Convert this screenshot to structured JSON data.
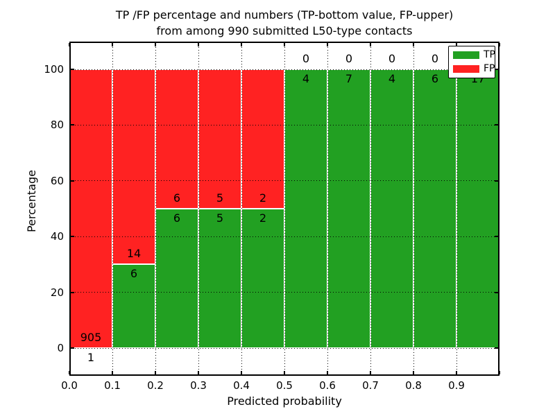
{
  "figure": {
    "title_line1": "TP /FP percentage and numbers (TP-bottom value, FP-upper)",
    "title_line2": "from among 990 submitted L50-type contacts",
    "xlabel": "Predicted probability",
    "ylabel": "Percentage"
  },
  "legend": {
    "position": "upper right",
    "items": [
      {
        "label": "TP",
        "color": "#22a022"
      },
      {
        "label": "FP",
        "color": "#ff2222"
      }
    ]
  },
  "chart_data": {
    "type": "bar",
    "stacked": true,
    "title": "TP /FP percentage and numbers (TP-bottom value, FP-upper) from among 990 submitted L50-type contacts",
    "xlabel": "Predicted probability",
    "ylabel": "Percentage",
    "xlim": [
      0.0,
      1.0
    ],
    "ylim": [
      -10,
      110
    ],
    "grid": "dotted",
    "legend_position": "upper right",
    "total_contacts": 990,
    "x_tick_labels": [
      "0.0",
      "0.1",
      "0.2",
      "0.3",
      "0.4",
      "0.5",
      "0.6",
      "0.7",
      "0.8",
      "0.9"
    ],
    "y_tick_values": [
      0,
      20,
      40,
      60,
      80,
      100
    ],
    "value_label_rule": "counts printed at TP/FP boundary: FP count above, TP count below",
    "bins": [
      {
        "range": [
          0.0,
          0.1
        ],
        "tp": 1,
        "fp": 905
      },
      {
        "range": [
          0.1,
          0.2
        ],
        "tp": 6,
        "fp": 14
      },
      {
        "range": [
          0.2,
          0.3
        ],
        "tp": 6,
        "fp": 6
      },
      {
        "range": [
          0.3,
          0.4
        ],
        "tp": 5,
        "fp": 5
      },
      {
        "range": [
          0.4,
          0.5
        ],
        "tp": 2,
        "fp": 2
      },
      {
        "range": [
          0.5,
          0.6
        ],
        "tp": 4,
        "fp": 0
      },
      {
        "range": [
          0.6,
          0.7
        ],
        "tp": 7,
        "fp": 0
      },
      {
        "range": [
          0.7,
          0.8
        ],
        "tp": 4,
        "fp": 0
      },
      {
        "range": [
          0.8,
          0.9
        ],
        "tp": 6,
        "fp": 0
      },
      {
        "range": [
          0.9,
          1.0
        ],
        "tp": 17,
        "fp": 0
      }
    ],
    "colors": {
      "tp": "#22a022",
      "fp": "#ff2222"
    }
  }
}
